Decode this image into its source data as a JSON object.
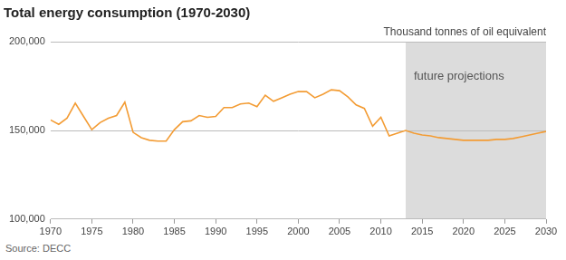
{
  "chart_data": {
    "type": "line",
    "title": "Total energy consumption (1970-2030)",
    "subtitle": "Thousand tonnes of oil equivalent",
    "source": "Source: DECC",
    "x": [
      1970,
      1971,
      1972,
      1973,
      1974,
      1975,
      1976,
      1977,
      1978,
      1979,
      1980,
      1981,
      1982,
      1983,
      1984,
      1985,
      1986,
      1987,
      1988,
      1989,
      1990,
      1991,
      1992,
      1993,
      1994,
      1995,
      1996,
      1997,
      1998,
      1999,
      2000,
      2001,
      2002,
      2003,
      2004,
      2005,
      2006,
      2007,
      2008,
      2009,
      2010,
      2011,
      2012,
      2013,
      2014,
      2015,
      2016,
      2017,
      2018,
      2019,
      2020,
      2021,
      2022,
      2023,
      2024,
      2025,
      2026,
      2027,
      2028,
      2029,
      2030
    ],
    "values": [
      156000,
      153500,
      157000,
      165500,
      158000,
      150500,
      154500,
      157000,
      158500,
      166000,
      149000,
      146000,
      144500,
      144000,
      144000,
      150500,
      155000,
      155500,
      158500,
      157500,
      158000,
      163000,
      163000,
      165000,
      165500,
      163500,
      170000,
      166500,
      168500,
      170500,
      172000,
      172000,
      168500,
      170500,
      173000,
      172500,
      169000,
      164500,
      162500,
      152500,
      157500,
      147000,
      148500,
      150000,
      148500,
      147500,
      147000,
      146000,
      145500,
      145000,
      144500,
      144500,
      144500,
      144500,
      145000,
      145000,
      145500,
      146500,
      147500,
      148500,
      149500
    ],
    "color": "#f39c34",
    "xlim": [
      1970,
      2030
    ],
    "xticks": [
      1970,
      1975,
      1980,
      1985,
      1990,
      1995,
      2000,
      2005,
      2010,
      2015,
      2020,
      2025,
      2030
    ],
    "ylim": [
      100000,
      200000
    ],
    "yticks": [
      {
        "value": 100000,
        "label": "100,000"
      },
      {
        "value": 150000,
        "label": "150,000"
      },
      {
        "value": 200000,
        "label": "200,000"
      }
    ],
    "grid": true,
    "shaded_region": {
      "from": 2013,
      "to": 2030,
      "label": "future projections"
    }
  }
}
